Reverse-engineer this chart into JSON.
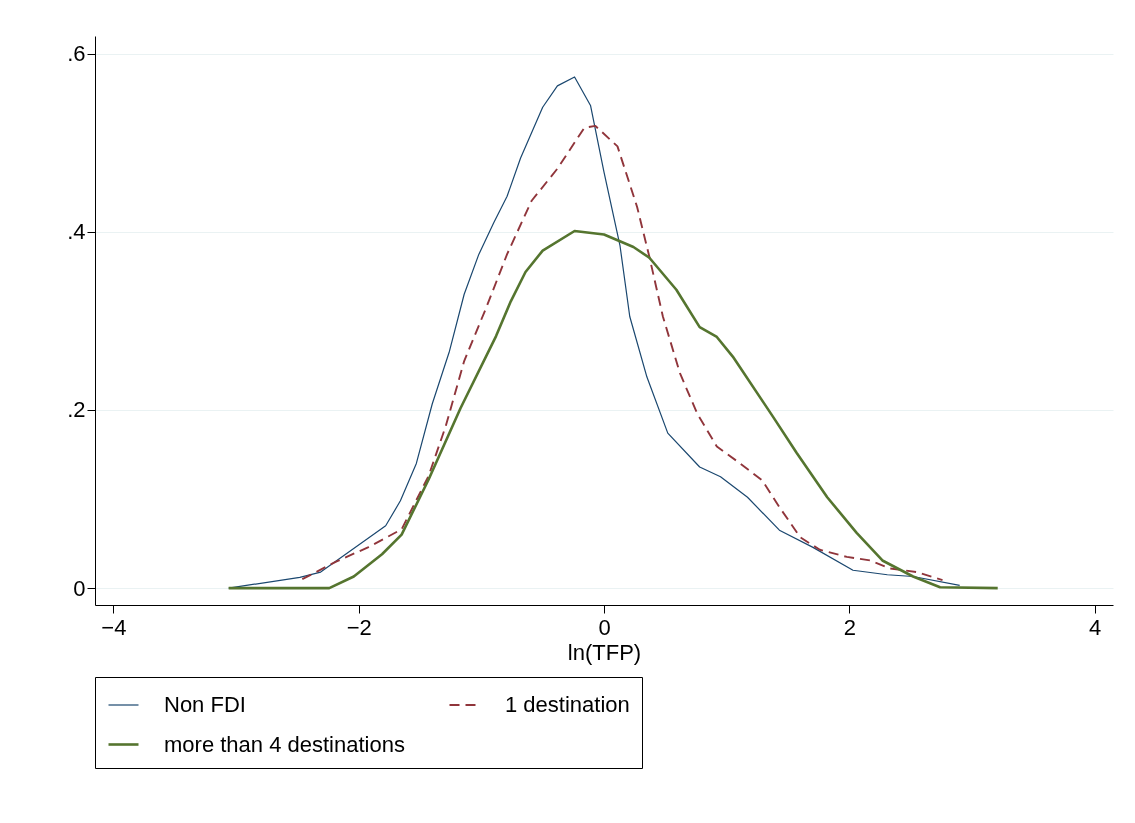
{
  "chart_data": {
    "type": "line",
    "xlabel": "ln(TFP)",
    "xlim": [
      -4.15,
      4.15
    ],
    "xticks": [
      -4,
      -2,
      0,
      2,
      4
    ],
    "ylim": [
      -0.019,
      0.62
    ],
    "yticks": [
      {
        "value": 0,
        "label": "0"
      },
      {
        "value": 0.2,
        "label": ".2"
      },
      {
        "value": 0.4,
        "label": ".4"
      },
      {
        "value": 0.6,
        "label": ".6"
      }
    ],
    "grid": "y",
    "legend": "bottom",
    "series": [
      {
        "name": "Non FDI",
        "color": "#1a476f",
        "line_style": "solid",
        "x": [
          -3.06,
          -2.48,
          -2.31,
          -1.78,
          -1.66,
          -1.53,
          -1.4,
          -1.26,
          -1.14,
          -1.02,
          -0.9,
          -0.79,
          -0.68,
          -0.5,
          -0.38,
          -0.24,
          -0.11,
          0,
          0.13,
          0.21,
          0.35,
          0.52,
          0.78,
          0.95,
          1.17,
          1.43,
          1.7,
          2.03,
          2.31,
          2.52,
          2.9
        ],
        "values": [
          0.0,
          0.012,
          0.018,
          0.07,
          0.098,
          0.14,
          0.207,
          0.266,
          0.33,
          0.375,
          0.41,
          0.44,
          0.483,
          0.54,
          0.564,
          0.574,
          0.542,
          0.467,
          0.385,
          0.305,
          0.237,
          0.174,
          0.136,
          0.125,
          0.102,
          0.065,
          0.046,
          0.02,
          0.015,
          0.013,
          0.003
        ]
      },
      {
        "name": "1 destination",
        "color": "#90353b",
        "line_style": "dashed",
        "x": [
          -2.46,
          -2.18,
          -1.92,
          -1.65,
          -1.43,
          -1.29,
          -1.14,
          -0.96,
          -0.79,
          -0.59,
          -0.38,
          -0.16,
          -0.07,
          0.11,
          0.27,
          0.37,
          0.48,
          0.62,
          0.76,
          0.92,
          1.11,
          1.29,
          1.43,
          1.6,
          1.76,
          1.98,
          2.17,
          2.33,
          2.55,
          2.76
        ],
        "values": [
          0.01,
          0.03,
          0.046,
          0.066,
          0.126,
          0.182,
          0.255,
          0.315,
          0.375,
          0.435,
          0.471,
          0.517,
          0.519,
          0.496,
          0.428,
          0.372,
          0.305,
          0.241,
          0.196,
          0.159,
          0.14,
          0.121,
          0.091,
          0.057,
          0.043,
          0.035,
          0.031,
          0.022,
          0.018,
          0.009
        ]
      },
      {
        "name": "more than 4 destinations",
        "color": "#55752f",
        "line_style": "solid",
        "x": [
          -3.06,
          -2.24,
          -2.04,
          -1.81,
          -1.65,
          -1.43,
          -1.17,
          -0.88,
          -0.76,
          -0.64,
          -0.5,
          -0.24,
          0,
          0.24,
          0.37,
          0.59,
          0.78,
          0.92,
          1.05,
          1.38,
          1.57,
          1.82,
          2.06,
          2.27,
          2.52,
          2.74,
          3.21
        ],
        "values": [
          0.0,
          0.0,
          0.013,
          0.038,
          0.06,
          0.122,
          0.202,
          0.283,
          0.322,
          0.355,
          0.379,
          0.401,
          0.397,
          0.383,
          0.371,
          0.335,
          0.293,
          0.282,
          0.26,
          0.192,
          0.152,
          0.102,
          0.062,
          0.031,
          0.013,
          0.001,
          0.0
        ]
      }
    ]
  }
}
